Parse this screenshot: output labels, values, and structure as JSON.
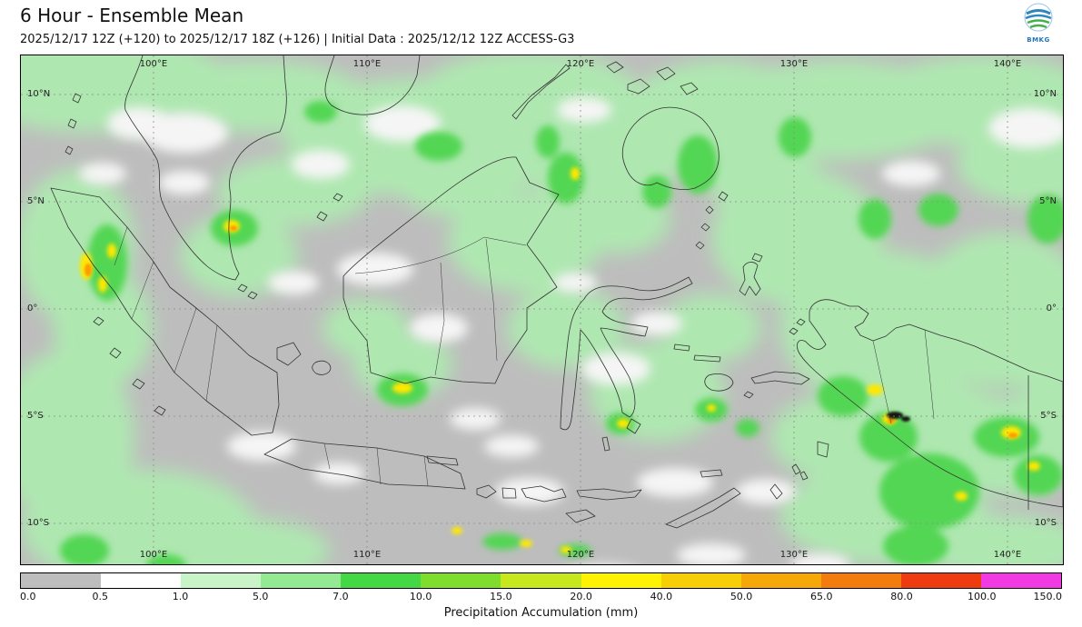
{
  "header": {
    "title": "6 Hour - Ensemble Mean",
    "subtitle": "2025/12/17 12Z (+120) to 2025/12/17 18Z (+126) | Initial Data : 2025/12/12 12Z ACCESS-G3",
    "logo_text": "BMKG"
  },
  "map": {
    "lon_labels": [
      "100°E",
      "110°E",
      "120°E",
      "130°E",
      "140°E"
    ],
    "lat_labels": [
      "10°N",
      "5°N",
      "0°",
      "5°S",
      "10°S"
    ]
  },
  "colorbar": {
    "caption": "Precipitation Accumulation (mm)",
    "tick_labels": [
      "0.0",
      "0.5",
      "1.0",
      "5.0",
      "7.0",
      "10.0",
      "15.0",
      "20.0",
      "40.0",
      "50.0",
      "65.0",
      "80.0",
      "100.0",
      "150.0"
    ],
    "segment_colors": [
      "#bdbdbd",
      "#ffffff",
      "#c9f4c7",
      "#93ea93",
      "#44d944",
      "#7fdd2e",
      "#c6e81c",
      "#fdf303",
      "#f6cf06",
      "#f7a809",
      "#f27d0d",
      "#ef3b10",
      "#f23ae2"
    ]
  },
  "chart_data": {
    "type": "heatmap",
    "title": "6 Hour - Ensemble Mean",
    "legend_label": "Precipitation Accumulation (mm)",
    "scale_breakpoints_mm": [
      0.0,
      0.5,
      1.0,
      5.0,
      7.0,
      10.0,
      15.0,
      20.0,
      40.0,
      50.0,
      65.0,
      80.0,
      100.0,
      150.0
    ],
    "scale_colors": [
      "#bdbdbd",
      "#ffffff",
      "#c9f4c7",
      "#93ea93",
      "#44d944",
      "#7fdd2e",
      "#c6e81c",
      "#fdf303",
      "#f6cf06",
      "#f7a809",
      "#f27d0d",
      "#ef3b10",
      "#f23ae2"
    ],
    "x_ticks": [
      "100°E",
      "110°E",
      "120°E",
      "130°E",
      "140°E"
    ],
    "y_ticks": [
      "10°N",
      "5°N",
      "0°",
      "5°S",
      "10°S"
    ]
  }
}
